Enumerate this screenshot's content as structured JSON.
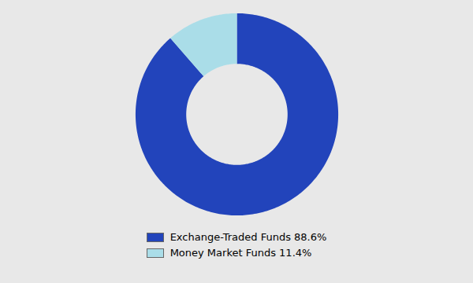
{
  "chart_data": {
    "type": "donut",
    "categories": [
      "Exchange-Traded Funds 88.6%",
      "Money Market Funds 11.4%"
    ],
    "values": [
      88.6,
      11.4
    ],
    "colors": [
      "#2244bb",
      "#aadde8"
    ],
    "legend": "bottom"
  }
}
